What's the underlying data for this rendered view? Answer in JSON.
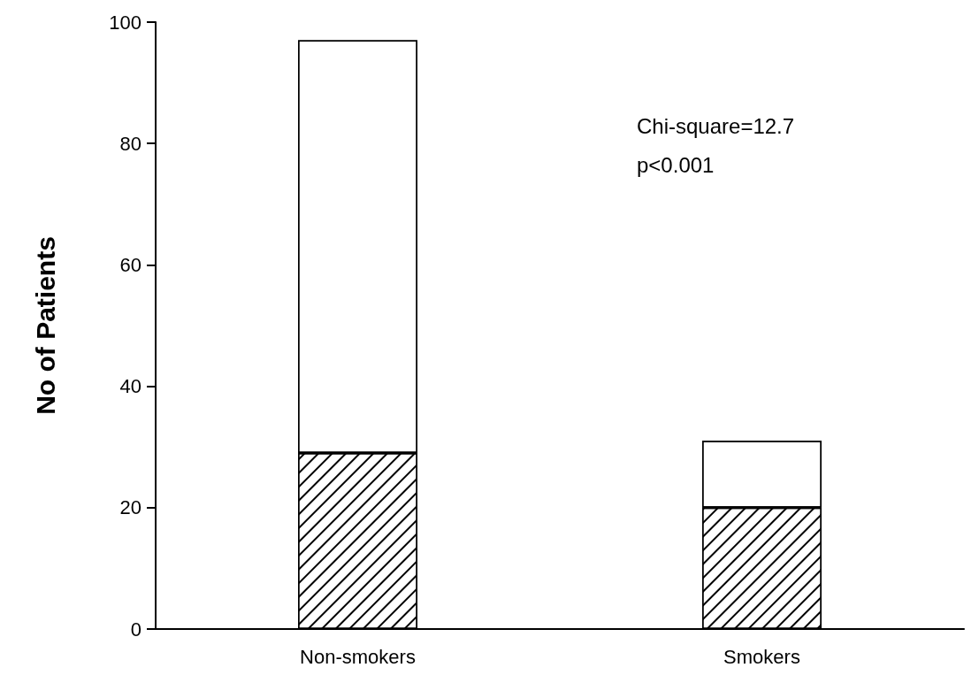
{
  "chart_data": {
    "type": "bar",
    "stacked": true,
    "ylabel": "No of Patients",
    "categories": [
      "Non-smokers",
      "Smokers"
    ],
    "series": [
      {
        "color": "#ffffff",
        "values": [
          29,
          20
        ]
      },
      {
        "color": "#ffffff",
        "values": [
          68,
          11
        ]
      }
    ],
    "ylim": [
      0,
      100
    ],
    "yticks": [
      0,
      20,
      40,
      60,
      80,
      100
    ],
    "grid": false,
    "annotations": [
      "Chi-square=12.7",
      "p<0.001"
    ]
  }
}
